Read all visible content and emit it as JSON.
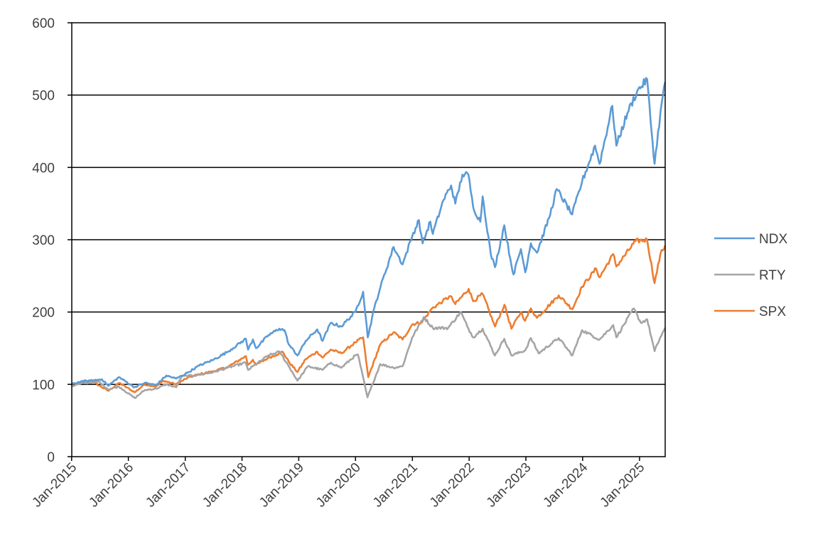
{
  "chart_data": {
    "type": "line",
    "title": "",
    "xlabel": "",
    "ylabel": "",
    "ylim": [
      0,
      600
    ],
    "yticks": [
      0,
      100,
      200,
      300,
      400,
      500,
      600
    ],
    "xlim": [
      "2015-01-02",
      "2025-06-15"
    ],
    "xticks": [
      "Jan-2015",
      "Jan-2016",
      "Jan-2017",
      "Jan-2018",
      "Jan-2019",
      "Jan-2020",
      "Jan-2021",
      "Jan-2022",
      "Jan-2023",
      "Jan-2024",
      "Jan-2025"
    ],
    "xtick_dates": [
      "2015-01-01",
      "2016-01-01",
      "2017-01-01",
      "2018-01-01",
      "2019-01-01",
      "2020-01-01",
      "2021-01-01",
      "2022-01-01",
      "2023-01-01",
      "2024-01-01",
      "2025-01-01"
    ],
    "grid": "horizontal",
    "legend_position": "right",
    "series": [
      {
        "name": "NDX",
        "color": "#5B9BD5",
        "points": [
          [
            "2015-01-02",
            100
          ],
          [
            "2015-03-01",
            104
          ],
          [
            "2015-05-01",
            105
          ],
          [
            "2015-07-15",
            107
          ],
          [
            "2015-08-25",
            98
          ],
          [
            "2015-11-01",
            110
          ],
          [
            "2016-02-10",
            96
          ],
          [
            "2016-04-15",
            102
          ],
          [
            "2016-06-27",
            99
          ],
          [
            "2016-09-01",
            112
          ],
          [
            "2016-11-04",
            108
          ],
          [
            "2017-01-15",
            116
          ],
          [
            "2017-04-01",
            126
          ],
          [
            "2017-07-01",
            134
          ],
          [
            "2017-10-01",
            145
          ],
          [
            "2018-01-26",
            163
          ],
          [
            "2018-02-09",
            148
          ],
          [
            "2018-03-12",
            162
          ],
          [
            "2018-04-02",
            150
          ],
          [
            "2018-06-20",
            168
          ],
          [
            "2018-08-29",
            177
          ],
          [
            "2018-10-01",
            175
          ],
          [
            "2018-10-29",
            155
          ],
          [
            "2018-12-24",
            140
          ],
          [
            "2019-02-15",
            160
          ],
          [
            "2019-04-30",
            176
          ],
          [
            "2019-06-03",
            160
          ],
          [
            "2019-07-26",
            185
          ],
          [
            "2019-10-01",
            180
          ],
          [
            "2019-12-31",
            200
          ],
          [
            "2020-02-19",
            228
          ],
          [
            "2020-03-20",
            165
          ],
          [
            "2020-04-30",
            205
          ],
          [
            "2020-06-10",
            235
          ],
          [
            "2020-09-02",
            290
          ],
          [
            "2020-10-30",
            266
          ],
          [
            "2020-12-31",
            305
          ],
          [
            "2021-02-12",
            327
          ],
          [
            "2021-03-08",
            295
          ],
          [
            "2021-04-26",
            325
          ],
          [
            "2021-05-12",
            308
          ],
          [
            "2021-07-20",
            355
          ],
          [
            "2021-09-07",
            375
          ],
          [
            "2021-10-04",
            350
          ],
          [
            "2021-11-19",
            390
          ],
          [
            "2021-12-27",
            390
          ],
          [
            "2022-01-27",
            345
          ],
          [
            "2022-03-14",
            325
          ],
          [
            "2022-03-29",
            360
          ],
          [
            "2022-05-20",
            280
          ],
          [
            "2022-06-16",
            262
          ],
          [
            "2022-08-15",
            320
          ],
          [
            "2022-09-30",
            265
          ],
          [
            "2022-10-13",
            252
          ],
          [
            "2022-11-30",
            287
          ],
          [
            "2022-12-28",
            255
          ],
          [
            "2023-02-02",
            295
          ],
          [
            "2023-03-13",
            282
          ],
          [
            "2023-05-30",
            330
          ],
          [
            "2023-07-19",
            370
          ],
          [
            "2023-10-26",
            335
          ],
          [
            "2023-12-28",
            380
          ],
          [
            "2024-03-21",
            430
          ],
          [
            "2024-04-19",
            405
          ],
          [
            "2024-07-10",
            485
          ],
          [
            "2024-08-05",
            430
          ],
          [
            "2024-10-15",
            475
          ],
          [
            "2024-12-16",
            505
          ],
          [
            "2025-02-19",
            522
          ],
          [
            "2025-03-13",
            465
          ],
          [
            "2025-04-08",
            405
          ],
          [
            "2025-05-15",
            475
          ],
          [
            "2025-06-15",
            518
          ]
        ]
      },
      {
        "name": "RTY",
        "color": "#A5A5A5",
        "points": [
          [
            "2015-01-02",
            98
          ],
          [
            "2015-03-01",
            101
          ],
          [
            "2015-06-23",
            104
          ],
          [
            "2015-08-25",
            93
          ],
          [
            "2015-11-01",
            97
          ],
          [
            "2016-02-11",
            81
          ],
          [
            "2016-04-15",
            92
          ],
          [
            "2016-06-27",
            94
          ],
          [
            "2016-09-01",
            100
          ],
          [
            "2016-11-04",
            96
          ],
          [
            "2016-12-09",
            111
          ],
          [
            "2017-04-01",
            113
          ],
          [
            "2017-07-01",
            117
          ],
          [
            "2017-10-01",
            123
          ],
          [
            "2018-01-24",
            130
          ],
          [
            "2018-02-09",
            120
          ],
          [
            "2018-06-20",
            140
          ],
          [
            "2018-08-31",
            145
          ],
          [
            "2018-10-29",
            125
          ],
          [
            "2018-12-24",
            105
          ],
          [
            "2019-03-01",
            125
          ],
          [
            "2019-06-03",
            120
          ],
          [
            "2019-07-26",
            130
          ],
          [
            "2019-10-02",
            123
          ],
          [
            "2019-12-31",
            140
          ],
          [
            "2020-01-17",
            141
          ],
          [
            "2020-03-18",
            82
          ],
          [
            "2020-06-08",
            128
          ],
          [
            "2020-09-01",
            123
          ],
          [
            "2020-10-30",
            125
          ],
          [
            "2020-12-31",
            165
          ],
          [
            "2021-03-15",
            193
          ],
          [
            "2021-05-12",
            178
          ],
          [
            "2021-08-19",
            178
          ],
          [
            "2021-11-08",
            200
          ],
          [
            "2021-12-20",
            180
          ],
          [
            "2022-01-27",
            165
          ],
          [
            "2022-03-29",
            177
          ],
          [
            "2022-06-16",
            140
          ],
          [
            "2022-08-15",
            163
          ],
          [
            "2022-09-30",
            140
          ],
          [
            "2022-12-28",
            147
          ],
          [
            "2023-02-02",
            164
          ],
          [
            "2023-03-24",
            143
          ],
          [
            "2023-07-31",
            164
          ],
          [
            "2023-10-27",
            140
          ],
          [
            "2023-12-28",
            175
          ],
          [
            "2024-04-19",
            162
          ],
          [
            "2024-07-16",
            182
          ],
          [
            "2024-08-05",
            165
          ],
          [
            "2024-11-25",
            205
          ],
          [
            "2025-01-10",
            185
          ],
          [
            "2025-02-19",
            190
          ],
          [
            "2025-04-08",
            146
          ],
          [
            "2025-05-15",
            165
          ],
          [
            "2025-06-15",
            178
          ]
        ]
      },
      {
        "name": "SPX",
        "color": "#ED7D31",
        "points": [
          [
            "2015-01-02",
            97
          ],
          [
            "2015-03-01",
            102
          ],
          [
            "2015-05-21",
            103
          ],
          [
            "2015-08-25",
            91
          ],
          [
            "2015-11-03",
            102
          ],
          [
            "2016-02-11",
            89
          ],
          [
            "2016-04-15",
            100
          ],
          [
            "2016-06-27",
            97
          ],
          [
            "2016-08-15",
            105
          ],
          [
            "2016-11-04",
            100
          ],
          [
            "2017-01-15",
            109
          ],
          [
            "2017-04-01",
            114
          ],
          [
            "2017-07-01",
            118
          ],
          [
            "2017-10-01",
            124
          ],
          [
            "2018-01-26",
            139
          ],
          [
            "2018-02-08",
            127
          ],
          [
            "2018-03-12",
            134
          ],
          [
            "2018-04-02",
            127
          ],
          [
            "2018-06-15",
            136
          ],
          [
            "2018-09-20",
            145
          ],
          [
            "2018-10-29",
            131
          ],
          [
            "2018-12-24",
            117
          ],
          [
            "2019-02-15",
            135
          ],
          [
            "2019-04-30",
            145
          ],
          [
            "2019-06-03",
            137
          ],
          [
            "2019-07-26",
            148
          ],
          [
            "2019-10-02",
            143
          ],
          [
            "2019-12-31",
            158
          ],
          [
            "2020-02-19",
            165
          ],
          [
            "2020-03-23",
            110
          ],
          [
            "2020-06-08",
            155
          ],
          [
            "2020-09-02",
            172
          ],
          [
            "2020-10-30",
            162
          ],
          [
            "2020-12-31",
            183
          ],
          [
            "2021-03-04",
            186
          ],
          [
            "2021-05-07",
            205
          ],
          [
            "2021-07-15",
            215
          ],
          [
            "2021-09-02",
            222
          ],
          [
            "2021-10-04",
            211
          ],
          [
            "2021-12-29",
            232
          ],
          [
            "2022-01-27",
            215
          ],
          [
            "2022-03-29",
            225
          ],
          [
            "2022-06-16",
            180
          ],
          [
            "2022-08-16",
            210
          ],
          [
            "2022-09-30",
            177
          ],
          [
            "2022-11-30",
            200
          ],
          [
            "2022-12-28",
            188
          ],
          [
            "2023-02-02",
            205
          ],
          [
            "2023-03-13",
            192
          ],
          [
            "2023-07-31",
            223
          ],
          [
            "2023-10-27",
            204
          ],
          [
            "2023-12-28",
            235
          ],
          [
            "2024-03-28",
            260
          ],
          [
            "2024-04-19",
            248
          ],
          [
            "2024-07-16",
            280
          ],
          [
            "2024-08-05",
            263
          ],
          [
            "2024-12-06",
            298
          ],
          [
            "2025-02-19",
            300
          ],
          [
            "2025-04-08",
            240
          ],
          [
            "2025-05-15",
            280
          ],
          [
            "2025-06-15",
            292
          ]
        ]
      }
    ]
  }
}
